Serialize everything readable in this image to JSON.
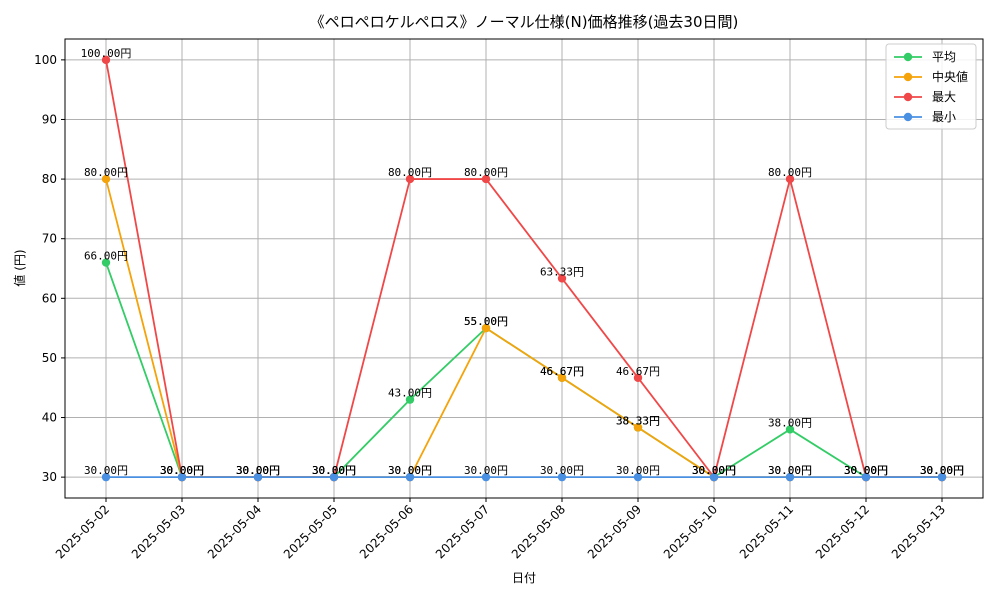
{
  "chart_data": {
    "type": "line",
    "title": "《ペロペロケルペロス》ノーマル仕様(N)価格推移(過去30日間)",
    "xlabel": "日付",
    "ylabel": "値 (円)",
    "ylim": [
      26.5,
      103.5
    ],
    "yticks": [
      30,
      40,
      50,
      60,
      70,
      80,
      90,
      100
    ],
    "grid": true,
    "legend_position": "top-right",
    "label_suffix": "円",
    "categories": [
      "2025-05-02",
      "2025-05-03",
      "2025-05-04",
      "2025-05-05",
      "2025-05-06",
      "2025-05-07",
      "2025-05-08",
      "2025-05-09",
      "2025-05-10",
      "2025-05-11",
      "2025-05-12",
      "2025-05-13"
    ],
    "series": [
      {
        "name": "平均",
        "color": "#33cc66",
        "values": [
          66.0,
          30.0,
          30.0,
          30.0,
          43.0,
          55.0,
          46.67,
          38.33,
          30.0,
          38.0,
          30.0,
          30.0
        ]
      },
      {
        "name": "中央値",
        "color": "#f5a30a",
        "values": [
          80.0,
          30.0,
          30.0,
          30.0,
          30.0,
          55.0,
          46.67,
          38.33,
          30.0,
          30.0,
          30.0,
          30.0
        ]
      },
      {
        "name": "最大",
        "color": "#f04848",
        "values": [
          100.0,
          30.0,
          30.0,
          30.0,
          80.0,
          80.0,
          63.33,
          46.67,
          30.0,
          80.0,
          30.0,
          30.0
        ]
      },
      {
        "name": "最小",
        "color": "#4a90e2",
        "values": [
          30.0,
          30.0,
          30.0,
          30.0,
          30.0,
          30.0,
          30.0,
          30.0,
          30.0,
          30.0,
          30.0,
          30.0
        ]
      }
    ]
  }
}
